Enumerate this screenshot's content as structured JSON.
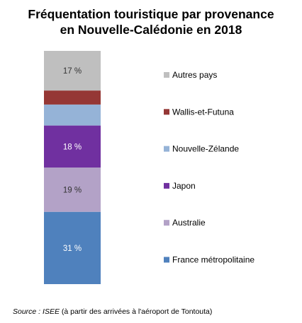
{
  "title": {
    "line1": "Fréquentation touristique par  provenance",
    "line2": "en Nouvelle-Calédonie en 2018"
  },
  "colors": {
    "france": "#4f81bd",
    "australie": "#b3a2c7",
    "japon": "#7030a0",
    "nouvelle_zelande": "#95b3d7",
    "wallis": "#953735",
    "autres": "#bfbfbf"
  },
  "chart_data": {
    "type": "bar",
    "stacked": true,
    "categories": [
      ""
    ],
    "ylim": [
      0,
      100
    ],
    "series": [
      {
        "name": "France métropolitaine",
        "values": [
          31
        ],
        "label": "31 %",
        "color": "#4f81bd"
      },
      {
        "name": "Australie",
        "values": [
          19
        ],
        "label": "19 %",
        "color": "#b3a2c7"
      },
      {
        "name": "Japon",
        "values": [
          18
        ],
        "label": "18 %",
        "color": "#7030a0"
      },
      {
        "name": "Nouvelle-Zélande",
        "values": [
          9
        ],
        "label": "",
        "color": "#95b3d7"
      },
      {
        "name": "Wallis-et-Futuna",
        "values": [
          6
        ],
        "label": "",
        "color": "#953735"
      },
      {
        "name": "Autres pays",
        "values": [
          17
        ],
        "label": "17 %",
        "color": "#bfbfbf"
      }
    ],
    "legend": {
      "position": "right",
      "order": [
        "Autres pays",
        "Wallis-et-Futuna",
        "Nouvelle-Zélande",
        "Japon",
        "Australie",
        "France métropolitaine"
      ]
    }
  },
  "source": {
    "label": "Source : ISEE",
    "detail": "(à partir des arrivées à l'aéroport de Tontouta)"
  }
}
